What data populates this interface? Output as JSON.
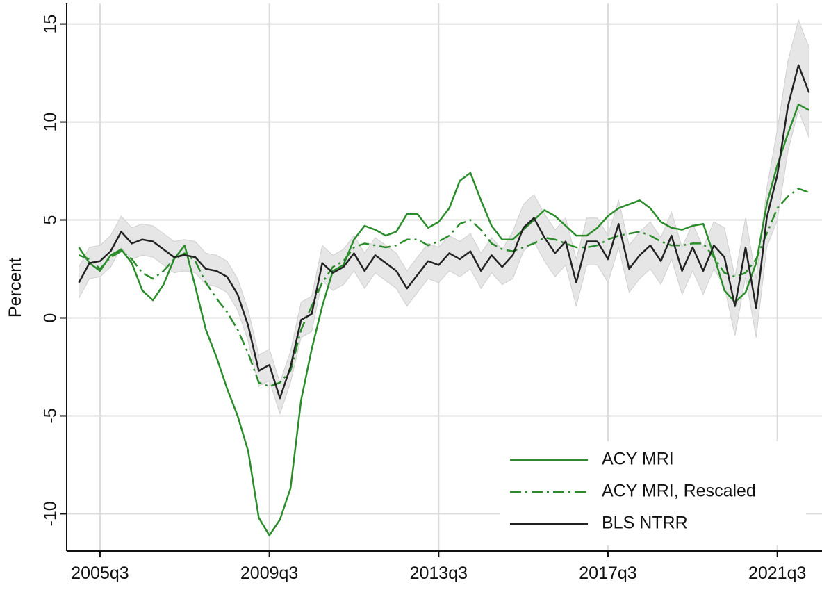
{
  "chart_data": {
    "type": "line",
    "y_label": "Percent",
    "categories": [
      null,
      null,
      "2005q3",
      null,
      null,
      null,
      null,
      null,
      null,
      null,
      null,
      null,
      null,
      null,
      null,
      null,
      null,
      null,
      "2009q3",
      null,
      null,
      null,
      null,
      null,
      null,
      null,
      null,
      null,
      null,
      null,
      null,
      null,
      null,
      null,
      "2013q3",
      null,
      null,
      null,
      null,
      null,
      null,
      null,
      null,
      null,
      null,
      null,
      null,
      null,
      null,
      null,
      "2017q3",
      null,
      null,
      null,
      null,
      null,
      null,
      null,
      null,
      null,
      null,
      null,
      null,
      null,
      null,
      null,
      "2021q3",
      null,
      null,
      null
    ],
    "series": [
      {
        "name": "ACY MRI",
        "color": "#2a8c2a",
        "style": "solid",
        "values": [
          3.6,
          2.8,
          2.4,
          3.2,
          3.5,
          2.8,
          1.4,
          0.9,
          1.7,
          3.0,
          3.7,
          1.6,
          -0.6,
          -2.0,
          -3.6,
          -5.0,
          -6.8,
          -10.2,
          -11.1,
          -10.3,
          -8.7,
          -4.2,
          -1.6,
          0.6,
          2.4,
          2.7,
          4.0,
          4.7,
          4.5,
          4.2,
          4.4,
          5.3,
          5.3,
          4.6,
          4.9,
          5.6,
          7.0,
          7.4,
          6.0,
          4.7,
          4.0,
          4.0,
          4.5,
          5.0,
          5.5,
          5.2,
          4.7,
          4.2,
          4.2,
          4.6,
          5.2,
          5.6,
          5.8,
          6.0,
          5.6,
          4.9,
          4.6,
          4.5,
          4.7,
          4.8,
          3.2,
          1.4,
          0.8,
          1.3,
          2.8,
          5.8,
          7.8,
          9.4,
          10.9,
          10.6
        ]
      },
      {
        "name": "ACY MRI, Rescaled",
        "color": "#2a8c2a",
        "style": "dashdot",
        "values": [
          3.2,
          3.0,
          2.5,
          3.1,
          3.4,
          3.0,
          2.3,
          2.0,
          2.4,
          3.0,
          3.3,
          2.9,
          1.8,
          1.0,
          0.3,
          -0.6,
          -1.8,
          -3.3,
          -3.5,
          -3.3,
          -2.7,
          -0.6,
          0.6,
          1.8,
          2.6,
          2.9,
          3.6,
          3.8,
          3.7,
          3.6,
          3.7,
          4.0,
          4.0,
          3.7,
          3.9,
          4.2,
          4.8,
          5.0,
          4.5,
          3.8,
          3.5,
          3.4,
          3.6,
          3.8,
          4.1,
          4.0,
          3.8,
          3.6,
          3.6,
          3.7,
          4.0,
          4.2,
          4.3,
          4.4,
          4.2,
          3.9,
          3.7,
          3.7,
          3.8,
          3.8,
          3.1,
          2.3,
          2.1,
          2.3,
          3.0,
          4.3,
          5.6,
          6.2,
          6.6,
          6.4
        ]
      },
      {
        "name": "BLS NTRR",
        "color": "#222222",
        "style": "solid",
        "values": [
          1.8,
          2.8,
          2.9,
          3.4,
          4.4,
          3.8,
          4.0,
          3.9,
          3.5,
          3.1,
          3.2,
          3.1,
          2.5,
          2.4,
          2.1,
          1.2,
          -0.4,
          -2.7,
          -2.4,
          -4.1,
          -2.5,
          -0.1,
          0.2,
          2.8,
          2.3,
          2.6,
          3.3,
          2.4,
          3.2,
          2.8,
          2.4,
          1.5,
          2.2,
          2.9,
          2.7,
          3.3,
          3.0,
          3.4,
          2.4,
          3.2,
          2.6,
          3.2,
          4.6,
          5.1,
          4.1,
          3.3,
          3.9,
          1.8,
          3.9,
          3.9,
          3.0,
          4.8,
          2.5,
          3.2,
          3.7,
          2.9,
          4.2,
          2.4,
          3.6,
          2.4,
          3.7,
          3.1,
          0.6,
          3.6,
          0.5,
          5.1,
          7.3,
          10.8,
          12.9,
          11.5
        ]
      }
    ],
    "band": {
      "color": "#e6e6e6",
      "lower": [
        1.0,
        2.0,
        2.1,
        2.6,
        3.6,
        3.0,
        3.2,
        3.1,
        2.7,
        2.3,
        2.4,
        2.3,
        1.7,
        1.6,
        1.3,
        0.4,
        -1.2,
        -3.5,
        -3.2,
        -4.9,
        -3.3,
        -1.0,
        -0.7,
        1.9,
        1.4,
        1.7,
        2.4,
        1.5,
        2.3,
        1.9,
        1.5,
        0.6,
        1.3,
        2.0,
        1.8,
        2.4,
        2.1,
        2.5,
        1.5,
        2.3,
        1.7,
        2.0,
        3.4,
        3.9,
        2.9,
        2.1,
        2.7,
        0.6,
        2.7,
        2.7,
        1.8,
        3.6,
        1.3,
        2.0,
        2.5,
        1.7,
        3.0,
        1.2,
        2.4,
        1.2,
        2.5,
        1.6,
        -0.9,
        2.1,
        -1.0,
        3.6,
        5.0,
        8.5,
        10.6,
        9.2
      ],
      "upper": [
        2.6,
        3.6,
        3.7,
        4.2,
        5.2,
        4.6,
        4.8,
        4.7,
        4.3,
        3.9,
        4.0,
        3.9,
        3.3,
        3.2,
        2.9,
        2.0,
        0.4,
        -1.9,
        -1.6,
        -3.3,
        -1.7,
        0.8,
        1.1,
        3.7,
        3.2,
        3.5,
        4.2,
        3.3,
        4.1,
        3.7,
        3.3,
        2.4,
        3.1,
        3.8,
        3.6,
        4.2,
        3.9,
        4.3,
        3.3,
        4.1,
        3.5,
        4.4,
        5.8,
        6.3,
        5.3,
        4.5,
        5.1,
        3.0,
        5.1,
        5.1,
        4.2,
        6.0,
        3.7,
        4.4,
        4.9,
        4.1,
        5.4,
        3.6,
        4.8,
        3.6,
        4.9,
        4.6,
        2.1,
        5.1,
        2.0,
        6.6,
        9.6,
        13.1,
        15.2,
        13.8
      ]
    },
    "ylim": [
      -11.9,
      16.05
    ],
    "yticks": [
      -10,
      -5,
      0,
      5,
      10,
      15
    ],
    "grid": true,
    "legend": "lower right"
  }
}
